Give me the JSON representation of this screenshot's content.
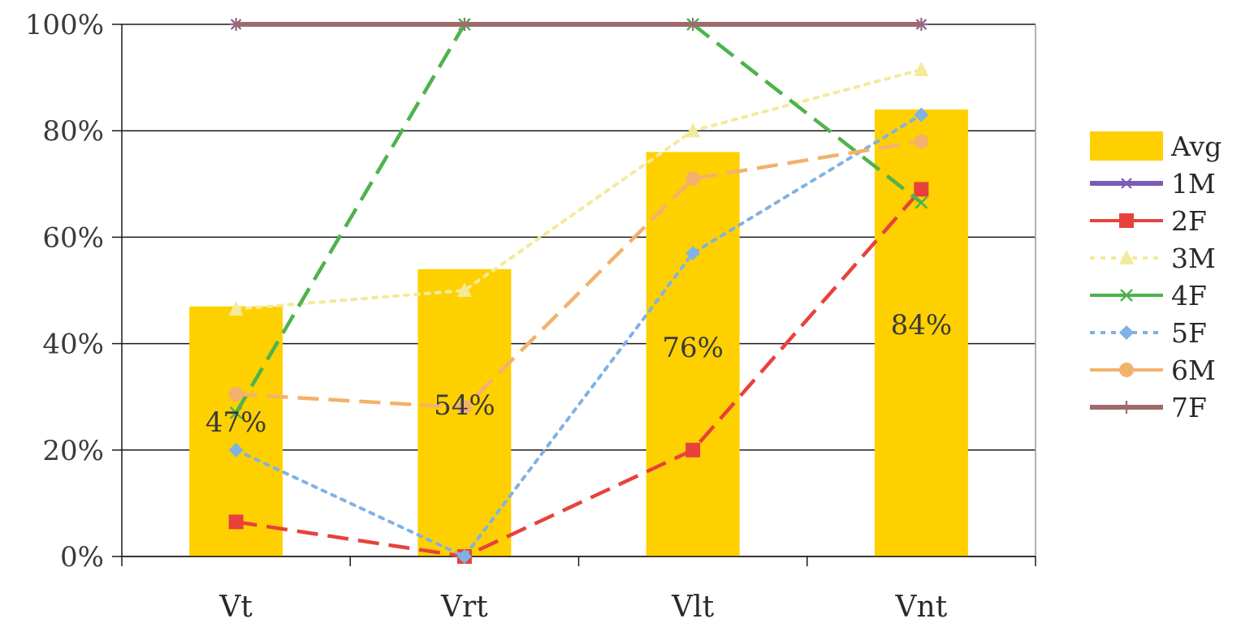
{
  "chart_data": {
    "type": "bar",
    "categories": [
      "Vt",
      "Vrt",
      "Vlt",
      "Vnt"
    ],
    "ylim": [
      0,
      100
    ],
    "y_ticks": [
      "0%",
      "20%",
      "40%",
      "60%",
      "80%",
      "100%"
    ],
    "grid": true,
    "legend_position": "right",
    "bar_series": {
      "name": "Avg",
      "values": [
        47,
        54,
        76,
        84
      ],
      "labels": [
        "47%",
        "54%",
        "76%",
        "84%"
      ],
      "color": "#FFD000"
    },
    "series": [
      {
        "name": "1M",
        "values": [
          100,
          100,
          100,
          100
        ],
        "color": "#7B5BB5",
        "dash": "solid",
        "marker": "asterisk"
      },
      {
        "name": "2F",
        "values": [
          6.5,
          0,
          20,
          69
        ],
        "color": "#E8413C",
        "dash": "long-dash",
        "marker": "square"
      },
      {
        "name": "3M",
        "values": [
          46.5,
          50,
          80,
          91.5
        ],
        "color": "#F3EA9A",
        "dash": "dot",
        "marker": "triangle"
      },
      {
        "name": "4F",
        "values": [
          27,
          100,
          100,
          66.5
        ],
        "color": "#4DB34D",
        "dash": "long-dash",
        "marker": "x"
      },
      {
        "name": "5F",
        "values": [
          20,
          0,
          57,
          83
        ],
        "color": "#7FB2E5",
        "dash": "dot",
        "marker": "diamond"
      },
      {
        "name": "6M",
        "values": [
          30.5,
          28,
          71,
          78
        ],
        "color": "#F2B26B",
        "dash": "long-dash",
        "marker": "circle"
      },
      {
        "name": "7F",
        "values": [
          100,
          100,
          100,
          100
        ],
        "color": "#A06A6A",
        "dash": "solid",
        "marker": "plus"
      }
    ]
  }
}
